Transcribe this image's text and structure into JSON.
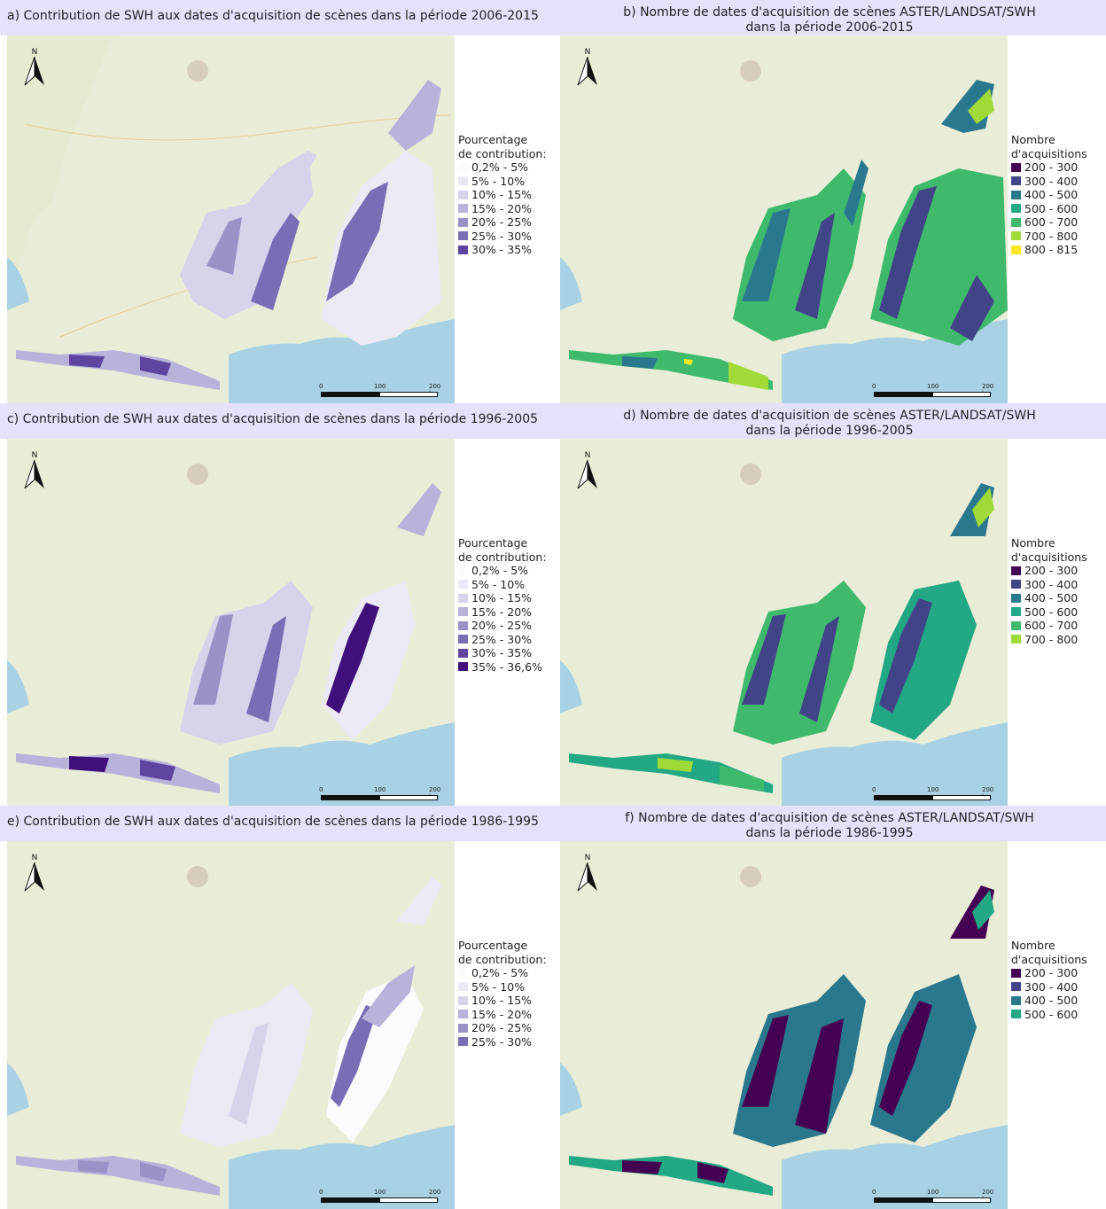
{
  "panels": [
    {
      "id": "a",
      "title_lines": [
        "a) Contribution de SWH aux dates d'acquisition de scènes dans la période 2006-2015"
      ],
      "legend_title": [
        "Pourcentage",
        "de contribution:"
      ],
      "legend": [
        {
          "label": "0,2% - 5%",
          "color": "#fbfbfd"
        },
        {
          "label": "5% - 10%",
          "color": "#ebe9f4"
        },
        {
          "label": "10% - 15%",
          "color": "#d6d3ea"
        },
        {
          "label": "15% - 20%",
          "color": "#b8b3da"
        },
        {
          "label": "20% - 25%",
          "color": "#9a91c7"
        },
        {
          "label": "25% - 30%",
          "color": "#7b6db5"
        },
        {
          "label": "30% - 35%",
          "color": "#5e46a0"
        }
      ]
    },
    {
      "id": "b",
      "title_lines": [
        "b) Nombre de dates d'acquisition de scènes ASTER/LANDSAT/SWH",
        "dans la période 2006-2015"
      ],
      "legend_title": [
        "Nombre",
        "d'acquisitions"
      ],
      "legend": [
        {
          "label": "200 - 300",
          "color": "#440154"
        },
        {
          "label": "300 - 400",
          "color": "#414487"
        },
        {
          "label": "400 - 500",
          "color": "#2a788e"
        },
        {
          "label": "500 - 600",
          "color": "#22a884"
        },
        {
          "label": "600 - 700",
          "color": "#3fba6c"
        },
        {
          "label": "700 - 800",
          "color": "#a0da39"
        },
        {
          "label": "800 - 815",
          "color": "#fde725"
        }
      ]
    },
    {
      "id": "c",
      "title_lines": [
        "c) Contribution de SWH aux dates d'acquisition de scènes dans la période 1996-2005"
      ],
      "legend_title": [
        "Pourcentage",
        "de contribution:"
      ],
      "legend": [
        {
          "label": "0,2% - 5%",
          "color": "#fbfbfd"
        },
        {
          "label": "5% - 10%",
          "color": "#ebe9f4"
        },
        {
          "label": "10% - 15%",
          "color": "#d6d3ea"
        },
        {
          "label": "15% - 20%",
          "color": "#b8b3da"
        },
        {
          "label": "20% - 25%",
          "color": "#9a91c7"
        },
        {
          "label": "25% - 30%",
          "color": "#7b6db5"
        },
        {
          "label": "30% - 35%",
          "color": "#5e46a0"
        },
        {
          "label": "35% - 36,6%",
          "color": "#3f0f7a"
        }
      ]
    },
    {
      "id": "d",
      "title_lines": [
        "d) Nombre de dates d'acquisition de scènes ASTER/LANDSAT/SWH",
        "dans la période 1996-2005"
      ],
      "legend_title": [
        "Nombre",
        "d'acquisitions"
      ],
      "legend": [
        {
          "label": "200 - 300",
          "color": "#440154"
        },
        {
          "label": "300 - 400",
          "color": "#414487"
        },
        {
          "label": "400 - 500",
          "color": "#2a788e"
        },
        {
          "label": "500 - 600",
          "color": "#22a884"
        },
        {
          "label": "600 - 700",
          "color": "#3fba6c"
        },
        {
          "label": "700 - 800",
          "color": "#a0da39"
        }
      ]
    },
    {
      "id": "e",
      "title_lines": [
        "e) Contribution de SWH aux dates d'acquisition de scènes dans la période 1986-1995"
      ],
      "legend_title": [
        "Pourcentage",
        "de contribution:"
      ],
      "legend": [
        {
          "label": "0,2% - 5%",
          "color": "#fbfbfd"
        },
        {
          "label": "5% - 10%",
          "color": "#ebe9f4"
        },
        {
          "label": "10% - 15%",
          "color": "#d6d3ea"
        },
        {
          "label": "15% - 20%",
          "color": "#b8b3da"
        },
        {
          "label": "20% - 25%",
          "color": "#9a91c7"
        },
        {
          "label": "25% - 30%",
          "color": "#7b6db5"
        }
      ]
    },
    {
      "id": "f",
      "title_lines": [
        "f) Nombre de dates d'acquisition de scènes ASTER/LANDSAT/SWH",
        "dans la période 1986-1995"
      ],
      "legend_title": [
        "Nombre",
        "d'acquisitions"
      ],
      "legend": [
        {
          "label": "200 - 300",
          "color": "#440154"
        },
        {
          "label": "300 - 400",
          "color": "#414487"
        },
        {
          "label": "400 - 500",
          "color": "#2a788e"
        },
        {
          "label": "500 - 600",
          "color": "#22a884"
        }
      ]
    }
  ],
  "scale_labels": [
    "0",
    "100",
    "200 km"
  ],
  "north_label": "N"
}
